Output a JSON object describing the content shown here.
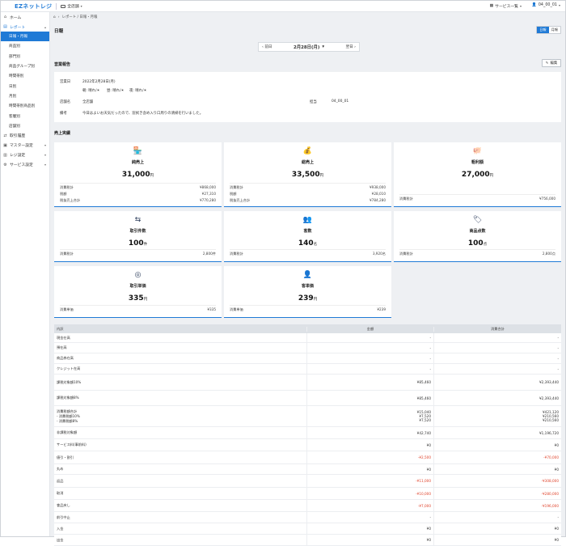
{
  "header": {
    "logo": "EZネットレジ",
    "store": "全店舗",
    "service_menu": "サービス一覧",
    "user": "04_00_01"
  },
  "sidebar": {
    "items": [
      {
        "label": "ホーム",
        "icon": "home-icon"
      },
      {
        "label": "レポート",
        "icon": "report-icon"
      }
    ],
    "report_sub": [
      "日報・月報",
      "商品別",
      "部門別",
      "商品グループ別",
      "時間帯別",
      "日別",
      "月別",
      "時間帯別商品別",
      "客層別",
      "店舗別"
    ],
    "bottom_items": [
      {
        "label": "取引履歴",
        "icon": "exchange-icon"
      },
      {
        "label": "マスター設定",
        "icon": "master-icon"
      },
      {
        "label": "レジ設定",
        "icon": "register-icon"
      },
      {
        "label": "サービス設定",
        "icon": "gear-icon"
      }
    ]
  },
  "breadcrumb": {
    "path": "レポート / 日報・月報"
  },
  "page": {
    "title": "日報",
    "toggle_daily": "日報",
    "toggle_monthly": "月報"
  },
  "datenav": {
    "prev": "前日",
    "date": "2月28日(月)",
    "next": "翌日"
  },
  "report": {
    "section_title": "営業報告",
    "edit_label": "編集",
    "biz_day_label": "営業日",
    "biz_day_value": "2022年2月28日(月)",
    "weather": [
      "朝: 晴れ/☀",
      "昼: 晴れ/☀",
      "夜: 晴れ/☀"
    ],
    "store_label": "店舗名",
    "store_value": "全店舗",
    "staff_label": "担当",
    "staff_value": "04_00_01",
    "note_label": "備考",
    "note_value": "今日はよいお天気だったので、窓拭き含め入り口周りの清掃を行いました。"
  },
  "sales": {
    "section_title": "売上実績",
    "cards": [
      {
        "label": "純売上",
        "value": "31,000",
        "unit": "円",
        "icon": "shop-icon",
        "rows": [
          [
            "消費税計",
            "¥868,000"
          ],
          [
            "税額",
            "¥27,310"
          ],
          [
            "税抜売上合計",
            "¥770,280"
          ]
        ]
      },
      {
        "label": "総売上",
        "value": "33,500",
        "unit": "円",
        "icon": "money-bag-icon",
        "rows": [
          [
            "消費税計",
            "¥938,000"
          ],
          [
            "税額",
            "¥28,010"
          ],
          [
            "税抜売上合計",
            "¥784,280"
          ]
        ]
      },
      {
        "label": "粗利額",
        "value": "27,000",
        "unit": "円",
        "icon": "piggy-bank-icon",
        "rows": [
          [
            "消費税計",
            "¥756,000"
          ]
        ]
      },
      {
        "label": "取引件数",
        "value": "100",
        "unit": "件",
        "icon": "transaction-icon",
        "rows": [
          [
            "消費税計",
            "2,800件"
          ]
        ]
      },
      {
        "label": "客数",
        "value": "140",
        "unit": "名",
        "icon": "customers-icon",
        "rows": [
          [
            "消費税計",
            "3,920名"
          ]
        ]
      },
      {
        "label": "商品点数",
        "value": "100",
        "unit": "点",
        "icon": "tag-icon",
        "rows": [
          [
            "消費税計",
            "2,800点"
          ]
        ]
      },
      {
        "label": "取引単価",
        "value": "335",
        "unit": "円",
        "icon": "coin-icon",
        "rows": [
          [
            "消費単価",
            "¥335"
          ]
        ]
      },
      {
        "label": "客単価",
        "value": "239",
        "unit": "円",
        "icon": "customer-price-icon",
        "rows": [
          [
            "消費単価",
            "¥239"
          ]
        ]
      }
    ]
  },
  "table": {
    "headers": [
      "内訳",
      "金額",
      "消費合計"
    ],
    "rows": [
      {
        "label": [
          "現金在高"
        ],
        "amount": [
          "-"
        ],
        "total": [
          "-"
        ],
        "h": 12
      },
      {
        "label": [
          "預在高"
        ],
        "amount": [
          "-"
        ],
        "total": [
          "-"
        ],
        "h": 13
      },
      {
        "label": [
          "商品券在高"
        ],
        "amount": [
          "-"
        ],
        "total": [
          "-"
        ],
        "h": 13
      },
      {
        "label": [
          "クレジット在高"
        ],
        "amount": [
          "-"
        ],
        "total": [
          "-"
        ],
        "h": 13
      },
      {
        "label": [
          "課税対象額10%"
        ],
        "amount": [
          "¥85,460"
        ],
        "total": [
          "¥2,393,440"
        ],
        "h": 20
      },
      {
        "label": [
          "課税対象額8%"
        ],
        "amount": [
          "¥85,460"
        ],
        "total": [
          "¥2,393,440"
        ],
        "h": 19
      },
      {
        "label": [
          "消費税額合計",
          "- 消費税額10%",
          "- 消費税額8%"
        ],
        "amount": [
          "¥15,040",
          "¥7,520",
          "¥7,520"
        ],
        "total": [
          "¥421,120",
          "¥210,560",
          "¥210,560"
        ],
        "h": 26
      },
      {
        "label": [
          "非課税対象額"
        ],
        "amount": [
          "¥42,740"
        ],
        "total": [
          "¥1,196,720"
        ],
        "h": 15
      },
      {
        "label": [
          "サービス料(事前料)"
        ],
        "amount": [
          "¥0"
        ],
        "total": [
          "¥0"
        ],
        "h": 15
      },
      {
        "label": [
          "値引・割引"
        ],
        "amount": [
          "-¥2,500"
        ],
        "total": [
          "-¥70,000"
        ],
        "h": 16,
        "neg": true
      },
      {
        "label": [
          "丸め"
        ],
        "amount": [
          "¥0"
        ],
        "total": [
          "¥0"
        ],
        "h": 13
      },
      {
        "label": [
          "返品"
        ],
        "amount": [
          "-¥11,000"
        ],
        "total": [
          "-¥308,000"
        ],
        "h": 16,
        "neg": true
      },
      {
        "label": [
          "取消"
        ],
        "amount": [
          "-¥10,000"
        ],
        "total": [
          "-¥280,000"
        ],
        "h": 15,
        "neg": true
      },
      {
        "label": [
          "會品戻し"
        ],
        "amount": [
          "-¥7,000"
        ],
        "total": [
          "-¥196,000"
        ],
        "h": 15,
        "neg": true
      },
      {
        "label": [
          "前引中止"
        ],
        "amount": [
          "-"
        ],
        "total": [
          "-"
        ],
        "h": 14
      },
      {
        "label": [
          "入金"
        ],
        "amount": [
          "¥0"
        ],
        "total": [
          "¥0"
        ],
        "h": 14
      },
      {
        "label": [
          "出金"
        ],
        "amount": [
          "¥0"
        ],
        "total": [
          "¥0"
        ],
        "h": 14
      }
    ]
  }
}
